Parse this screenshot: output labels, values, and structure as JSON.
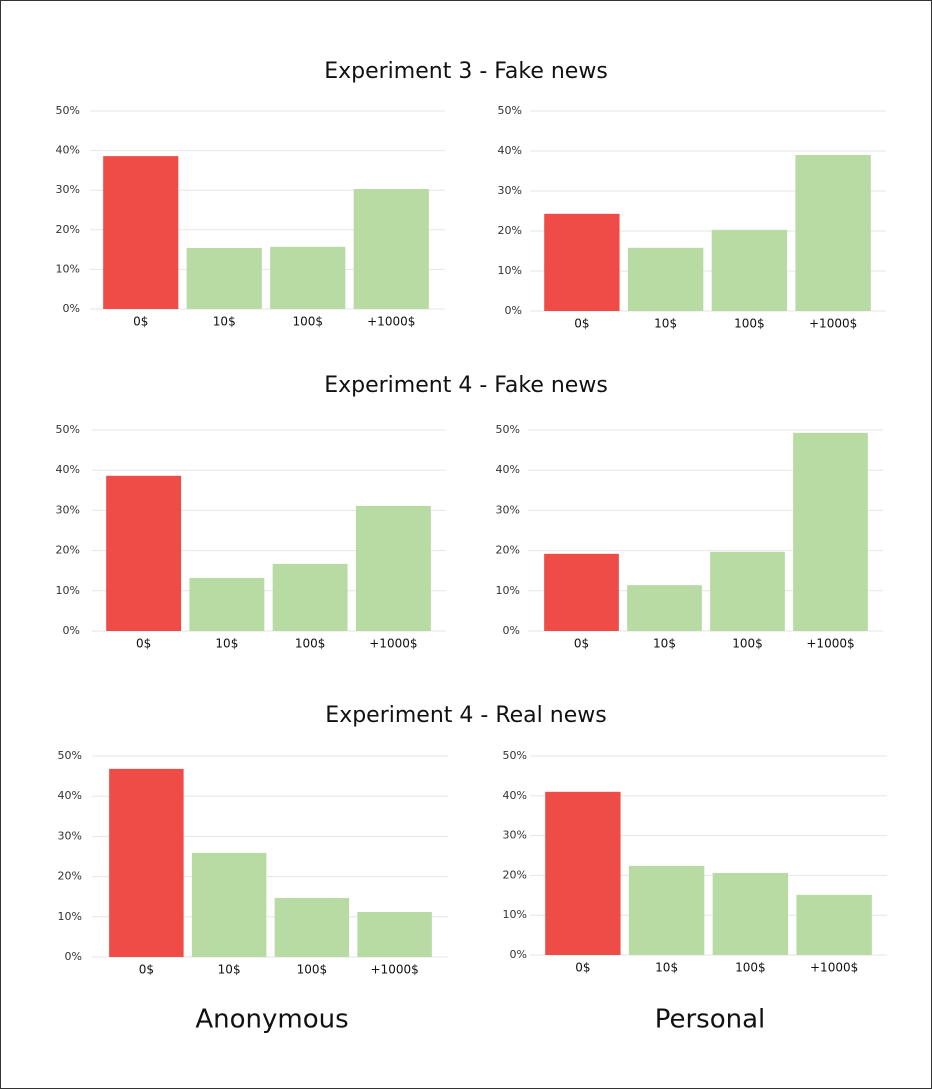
{
  "row_titles": [
    "Experiment 3 - Fake news",
    "Experiment 4 - Fake news",
    "Experiment 4 - Real news"
  ],
  "column_titles": [
    "Anonymous",
    "Personal"
  ],
  "chart_data": [
    {
      "type": "bar",
      "categories": [
        "0$",
        "10$",
        "100$",
        "+1000$"
      ],
      "values": [
        38.6,
        15.4,
        15.7,
        30.3
      ],
      "colors": [
        "#ef4b47",
        "#b8daa3",
        "#b8daa3",
        "#b8daa3"
      ],
      "ylim": [
        0,
        50
      ],
      "yticks": [
        {
          "value": 0,
          "label": "0%"
        },
        {
          "value": 10,
          "label": "10%"
        },
        {
          "value": 20,
          "label": "20%"
        },
        {
          "value": 30,
          "label": "30%"
        },
        {
          "value": 40,
          "label": "40%"
        },
        {
          "value": 50,
          "label": "50%"
        }
      ],
      "grid": true
    },
    {
      "type": "bar",
      "categories": [
        "0$",
        "10$",
        "100$",
        "+1000$"
      ],
      "values": [
        24.3,
        15.8,
        20.3,
        39.0
      ],
      "colors": [
        "#ef4b47",
        "#b8daa3",
        "#b8daa3",
        "#b8daa3"
      ],
      "ylim": [
        0,
        50
      ],
      "yticks": [
        {
          "value": 0,
          "label": "0%"
        },
        {
          "value": 10,
          "label": "10%"
        },
        {
          "value": 20,
          "label": "20%"
        },
        {
          "value": 30,
          "label": "30%"
        },
        {
          "value": 40,
          "label": "40%"
        },
        {
          "value": 50,
          "label": "50%"
        }
      ],
      "grid": true
    },
    {
      "type": "bar",
      "categories": [
        "0$",
        "10$",
        "100$",
        "+1000$"
      ],
      "values": [
        38.6,
        13.2,
        16.7,
        31.1
      ],
      "colors": [
        "#ef4b47",
        "#b8daa3",
        "#b8daa3",
        "#b8daa3"
      ],
      "ylim": [
        0,
        50
      ],
      "yticks": [
        {
          "value": 0,
          "label": "0%"
        },
        {
          "value": 10,
          "label": "10%"
        },
        {
          "value": 20,
          "label": "20%"
        },
        {
          "value": 30,
          "label": "30%"
        },
        {
          "value": 40,
          "label": "40%"
        },
        {
          "value": 50,
          "label": "50%"
        }
      ],
      "grid": true
    },
    {
      "type": "bar",
      "categories": [
        "0$",
        "10$",
        "100$",
        "+1000$"
      ],
      "values": [
        19.2,
        11.4,
        19.7,
        49.3
      ],
      "colors": [
        "#ef4b47",
        "#b8daa3",
        "#b8daa3",
        "#b8daa3"
      ],
      "ylim": [
        0,
        50
      ],
      "yticks": [
        {
          "value": 0,
          "label": "0%"
        },
        {
          "value": 10,
          "label": "10%"
        },
        {
          "value": 20,
          "label": "20%"
        },
        {
          "value": 30,
          "label": "30%"
        },
        {
          "value": 40,
          "label": "40%"
        },
        {
          "value": 50,
          "label": "50%"
        }
      ],
      "grid": true
    },
    {
      "type": "bar",
      "categories": [
        "0$",
        "10$",
        "100$",
        "+1000$"
      ],
      "values": [
        46.8,
        25.9,
        14.7,
        11.2
      ],
      "colors": [
        "#ef4b47",
        "#b8daa3",
        "#b8daa3",
        "#b8daa3"
      ],
      "ylim": [
        0,
        50
      ],
      "yticks": [
        {
          "value": 0,
          "label": "0%"
        },
        {
          "value": 10,
          "label": "10%"
        },
        {
          "value": 20,
          "label": "20%"
        },
        {
          "value": 30,
          "label": "30%"
        },
        {
          "value": 40,
          "label": "40%"
        },
        {
          "value": 50,
          "label": "50%"
        }
      ],
      "grid": true
    },
    {
      "type": "bar",
      "categories": [
        "0$",
        "10$",
        "100$",
        "+1000$"
      ],
      "values": [
        41.0,
        22.4,
        20.6,
        15.1
      ],
      "colors": [
        "#ef4b47",
        "#b8daa3",
        "#b8daa3",
        "#b8daa3"
      ],
      "ylim": [
        0,
        50
      ],
      "yticks": [
        {
          "value": 0,
          "label": "0%"
        },
        {
          "value": 10,
          "label": "10%"
        },
        {
          "value": 20,
          "label": "20%"
        },
        {
          "value": 30,
          "label": "30%"
        },
        {
          "value": 40,
          "label": "40%"
        },
        {
          "value": 50,
          "label": "50%"
        }
      ],
      "grid": true
    }
  ]
}
